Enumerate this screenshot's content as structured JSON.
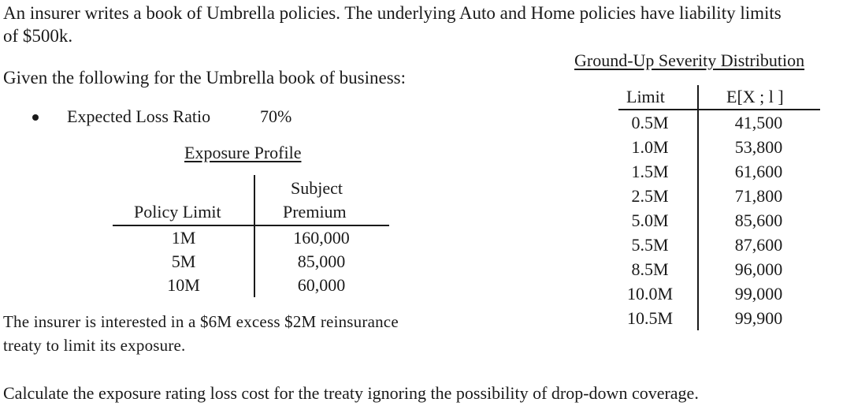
{
  "intro": {
    "line1": "An insurer writes a book of Umbrella policies. The underlying Auto and Home policies have liability limits",
    "line2": "of $500k."
  },
  "given": "Given the following for the Umbrella book of business:",
  "bullet": {
    "label": "Expected Loss Ratio",
    "value": "70%"
  },
  "exposure_profile": {
    "title": "Exposure Profile",
    "headers": {
      "limit": "Policy Limit",
      "premium_line1": "Subject",
      "premium_line2": "Premium"
    },
    "rows": [
      {
        "limit": "1M",
        "premium": "160,000"
      },
      {
        "limit": "5M",
        "premium": "85,000"
      },
      {
        "limit": "10M",
        "premium": "60,000"
      }
    ]
  },
  "severity": {
    "title": "Ground-Up Severity Distribution",
    "headers": {
      "limit": "Limit",
      "lev": "E[X ; l ]"
    },
    "rows": [
      {
        "limit": "0.5M",
        "lev": "41,500"
      },
      {
        "limit": "1.0M",
        "lev": "53,800"
      },
      {
        "limit": "1.5M",
        "lev": "61,600"
      },
      {
        "limit": "2.5M",
        "lev": "71,800"
      },
      {
        "limit": "5.0M",
        "lev": "85,600"
      },
      {
        "limit": "5.5M",
        "lev": "87,600"
      },
      {
        "limit": "8.5M",
        "lev": "96,000"
      },
      {
        "limit": "10.0M",
        "lev": "99,000"
      },
      {
        "limit": "10.5M",
        "lev": "99,900"
      }
    ]
  },
  "treaty": {
    "line1": "The insurer is interested in a $6M excess $2M reinsurance",
    "line2": "treaty to limit its exposure."
  },
  "calculate": "Calculate the exposure rating loss cost for the treaty ignoring the possibility of drop-down coverage."
}
